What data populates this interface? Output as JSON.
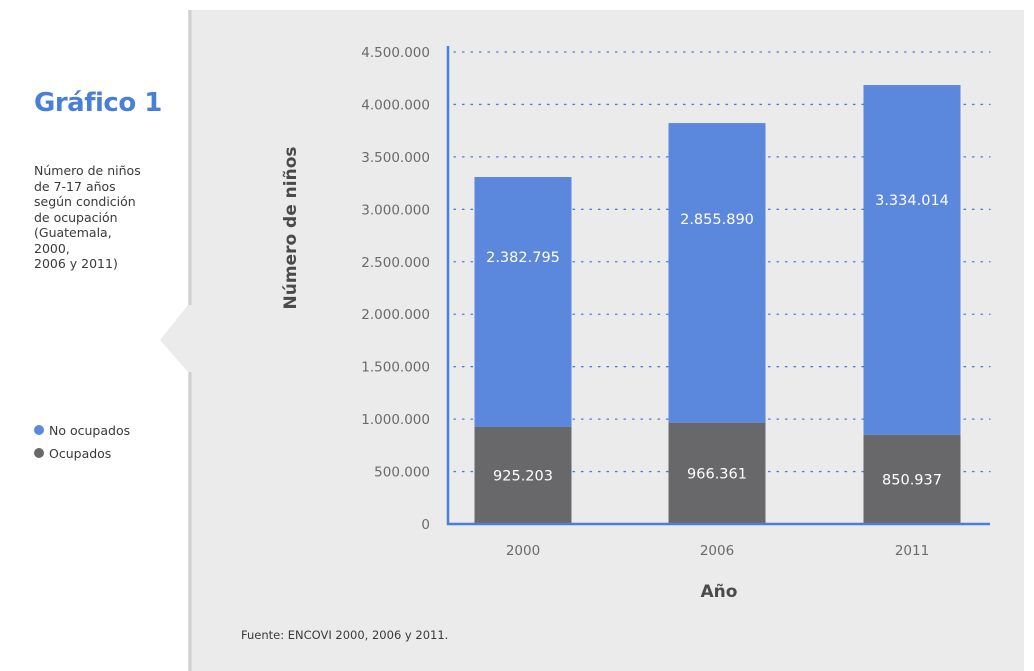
{
  "sidebar": {
    "title": "Gráfico 1",
    "subtitle_lines": [
      "Número de niños",
      "de 7-17 años",
      "según condición",
      "de ocupación",
      "(Guatemala,",
      "2000,",
      "2006 y 2011)"
    ],
    "legend": [
      {
        "label": "No ocupados",
        "color": "#5b87dc"
      },
      {
        "label": "Ocupados",
        "color": "#68686b"
      }
    ]
  },
  "source": "Fuente: ENCOVI 2000, 2006 y 2011.",
  "colors": {
    "panel": "#ebebeb",
    "axis": "#4a7fd8",
    "accent": "#4a7fd8",
    "no_ocupados": "#5b87dc",
    "ocupados": "#68686b"
  },
  "chart_data": {
    "type": "bar",
    "stacked": true,
    "categories": [
      "2000",
      "2006",
      "2011"
    ],
    "series": [
      {
        "name": "Ocupados",
        "values": [
          925203,
          966361,
          850937
        ],
        "labels": [
          "925.203",
          "966.361",
          "850.937"
        ]
      },
      {
        "name": "No ocupados",
        "values": [
          2382795,
          2855890,
          3334014
        ],
        "labels": [
          "2.382.795",
          "2.855.890",
          "3.334.014"
        ]
      }
    ],
    "xlabel": "Año",
    "ylabel": "Número de niños",
    "ylim": [
      0,
      4500000
    ],
    "yticks": [
      0,
      500000,
      1000000,
      1500000,
      2000000,
      2500000,
      3000000,
      3500000,
      4000000,
      4500000
    ],
    "ytick_labels": [
      "0",
      "500.000",
      "1.000.000",
      "1.500.000",
      "2.000.000",
      "2.500.000",
      "3.000.000",
      "3.500.000",
      "4.000.000",
      "4.500.000"
    ],
    "grid": "dotted horizontal",
    "legend_position": "left"
  }
}
